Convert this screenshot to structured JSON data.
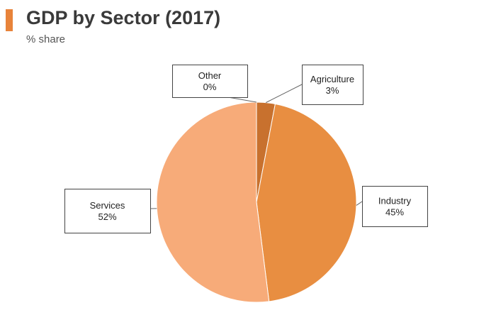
{
  "header": {
    "title": "GDP by Sector (2017)",
    "subtitle": "% share"
  },
  "colors": {
    "accent": "#e8833a"
  },
  "chart_data": {
    "type": "pie",
    "title": "GDP by Sector (2017)",
    "subtitle": "% share",
    "slices": [
      {
        "label": "Other",
        "value": 0,
        "value_label": "0%",
        "color": "#d9823b"
      },
      {
        "label": "Agriculture",
        "value": 3,
        "value_label": "3%",
        "color": "#c8712e"
      },
      {
        "label": "Industry",
        "value": 45,
        "value_label": "45%",
        "color": "#e88e41"
      },
      {
        "label": "Services",
        "value": 52,
        "value_label": "52%",
        "color": "#f7ab79"
      }
    ],
    "start_angle_deg": 0,
    "direction": "clockwise",
    "legend": "none"
  }
}
